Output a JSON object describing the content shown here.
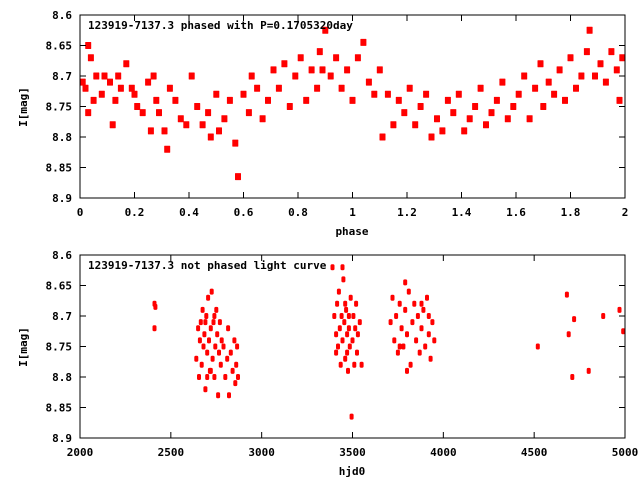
{
  "chart_data": [
    {
      "type": "scatter",
      "title": "123919-7137.3 phased with P=0.1705320day",
      "xlabel": "phase",
      "ylabel": "I[mag]",
      "xlim": [
        0,
        2
      ],
      "ylim": [
        8.9,
        8.6
      ],
      "y_inverted": true,
      "xticks": [
        "0",
        "0.2",
        "0.4",
        "0.6",
        "0.8",
        "1",
        "1.2",
        "1.4",
        "1.6",
        "1.8",
        "2"
      ],
      "yticks": [
        "8.6",
        "8.65",
        "8.7",
        "8.75",
        "8.8",
        "8.85",
        "8.9"
      ],
      "color": "#ff0000",
      "grid": false,
      "points": [
        [
          0.01,
          8.71
        ],
        [
          0.02,
          8.72
        ],
        [
          0.03,
          8.76
        ],
        [
          0.03,
          8.65
        ],
        [
          0.04,
          8.67
        ],
        [
          0.05,
          8.74
        ],
        [
          0.06,
          8.7
        ],
        [
          0.08,
          8.73
        ],
        [
          0.09,
          8.7
        ],
        [
          0.11,
          8.71
        ],
        [
          0.12,
          8.78
        ],
        [
          0.13,
          8.74
        ],
        [
          0.14,
          8.7
        ],
        [
          0.15,
          8.72
        ],
        [
          0.17,
          8.68
        ],
        [
          0.19,
          8.72
        ],
        [
          0.2,
          8.73
        ],
        [
          0.21,
          8.75
        ],
        [
          0.23,
          8.76
        ],
        [
          0.25,
          8.71
        ],
        [
          0.26,
          8.79
        ],
        [
          0.27,
          8.7
        ],
        [
          0.28,
          8.74
        ],
        [
          0.29,
          8.76
        ],
        [
          0.31,
          8.79
        ],
        [
          0.32,
          8.82
        ],
        [
          0.33,
          8.72
        ],
        [
          0.35,
          8.74
        ],
        [
          0.37,
          8.77
        ],
        [
          0.39,
          8.78
        ],
        [
          0.41,
          8.7
        ],
        [
          0.43,
          8.75
        ],
        [
          0.45,
          8.78
        ],
        [
          0.47,
          8.76
        ],
        [
          0.48,
          8.8
        ],
        [
          0.5,
          8.73
        ],
        [
          0.51,
          8.79
        ],
        [
          0.53,
          8.77
        ],
        [
          0.55,
          8.74
        ],
        [
          0.57,
          8.81
        ],
        [
          0.58,
          8.865
        ],
        [
          0.6,
          8.73
        ],
        [
          0.62,
          8.76
        ],
        [
          0.63,
          8.7
        ],
        [
          0.65,
          8.72
        ],
        [
          0.67,
          8.77
        ],
        [
          0.69,
          8.74
        ],
        [
          0.71,
          8.69
        ],
        [
          0.73,
          8.72
        ],
        [
          0.75,
          8.68
        ],
        [
          0.77,
          8.75
        ],
        [
          0.79,
          8.7
        ],
        [
          0.81,
          8.67
        ],
        [
          0.83,
          8.74
        ],
        [
          0.85,
          8.69
        ],
        [
          0.87,
          8.72
        ],
        [
          0.88,
          8.66
        ],
        [
          0.89,
          8.69
        ],
        [
          0.9,
          8.625
        ],
        [
          0.92,
          8.7
        ],
        [
          0.94,
          8.67
        ],
        [
          0.96,
          8.72
        ],
        [
          0.98,
          8.69
        ],
        [
          1.0,
          8.74
        ],
        [
          1.02,
          8.67
        ],
        [
          1.04,
          8.645
        ],
        [
          1.06,
          8.71
        ],
        [
          1.08,
          8.73
        ],
        [
          1.1,
          8.69
        ],
        [
          1.11,
          8.8
        ],
        [
          1.13,
          8.73
        ],
        [
          1.15,
          8.78
        ],
        [
          1.17,
          8.74
        ],
        [
          1.19,
          8.76
        ],
        [
          1.21,
          8.72
        ],
        [
          1.23,
          8.78
        ],
        [
          1.25,
          8.75
        ],
        [
          1.27,
          8.73
        ],
        [
          1.29,
          8.8
        ],
        [
          1.31,
          8.77
        ],
        [
          1.33,
          8.79
        ],
        [
          1.35,
          8.74
        ],
        [
          1.37,
          8.76
        ],
        [
          1.39,
          8.73
        ],
        [
          1.41,
          8.79
        ],
        [
          1.43,
          8.77
        ],
        [
          1.45,
          8.75
        ],
        [
          1.47,
          8.72
        ],
        [
          1.49,
          8.78
        ],
        [
          1.51,
          8.76
        ],
        [
          1.53,
          8.74
        ],
        [
          1.55,
          8.71
        ],
        [
          1.57,
          8.77
        ],
        [
          1.59,
          8.75
        ],
        [
          1.61,
          8.73
        ],
        [
          1.63,
          8.7
        ],
        [
          1.65,
          8.77
        ],
        [
          1.67,
          8.72
        ],
        [
          1.69,
          8.68
        ],
        [
          1.7,
          8.75
        ],
        [
          1.72,
          8.71
        ],
        [
          1.74,
          8.73
        ],
        [
          1.76,
          8.69
        ],
        [
          1.78,
          8.74
        ],
        [
          1.8,
          8.67
        ],
        [
          1.82,
          8.72
        ],
        [
          1.84,
          8.7
        ],
        [
          1.86,
          8.66
        ],
        [
          1.87,
          8.625
        ],
        [
          1.89,
          8.7
        ],
        [
          1.91,
          8.68
        ],
        [
          1.93,
          8.71
        ],
        [
          1.95,
          8.66
        ],
        [
          1.97,
          8.69
        ],
        [
          1.99,
          8.67
        ],
        [
          1.98,
          8.74
        ]
      ]
    },
    {
      "type": "scatter",
      "title": "123919-7137.3 not phased light curve",
      "xlabel": "hjd0",
      "ylabel": "I[mag]",
      "xlim": [
        2000,
        5000
      ],
      "ylim": [
        8.9,
        8.6
      ],
      "y_inverted": true,
      "xticks": [
        "2000",
        "2500",
        "3000",
        "3500",
        "4000",
        "4500",
        "5000"
      ],
      "yticks": [
        "8.6",
        "8.65",
        "8.7",
        "8.75",
        "8.8",
        "8.85",
        "8.9"
      ],
      "color": "#ff0000",
      "grid": false,
      "points": [
        [
          2410,
          8.68
        ],
        [
          2415,
          8.685
        ],
        [
          2410,
          8.72
        ],
        [
          2640,
          8.77
        ],
        [
          2650,
          8.72
        ],
        [
          2655,
          8.8
        ],
        [
          2660,
          8.74
        ],
        [
          2665,
          8.71
        ],
        [
          2670,
          8.78
        ],
        [
          2675,
          8.69
        ],
        [
          2680,
          8.75
        ],
        [
          2685,
          8.73
        ],
        [
          2690,
          8.82
        ],
        [
          2695,
          8.7
        ],
        [
          2700,
          8.76
        ],
        [
          2705,
          8.67
        ],
        [
          2710,
          8.74
        ],
        [
          2715,
          8.79
        ],
        [
          2720,
          8.72
        ],
        [
          2725,
          8.66
        ],
        [
          2730,
          8.77
        ],
        [
          2735,
          8.71
        ],
        [
          2740,
          8.8
        ],
        [
          2745,
          8.75
        ],
        [
          2750,
          8.69
        ],
        [
          2755,
          8.73
        ],
        [
          2760,
          8.83
        ],
        [
          2765,
          8.76
        ],
        [
          2770,
          8.71
        ],
        [
          2775,
          8.78
        ],
        [
          2780,
          8.74
        ],
        [
          2790,
          8.75
        ],
        [
          2800,
          8.8
        ],
        [
          2810,
          8.77
        ],
        [
          2815,
          8.72
        ],
        [
          2820,
          8.83
        ],
        [
          2830,
          8.76
        ],
        [
          2840,
          8.79
        ],
        [
          2850,
          8.74
        ],
        [
          2855,
          8.81
        ],
        [
          2860,
          8.78
        ],
        [
          2865,
          8.75
        ],
        [
          2870,
          8.8
        ],
        [
          2700,
          8.8
        ],
        [
          2720,
          8.79
        ],
        [
          2690,
          8.71
        ],
        [
          2740,
          8.7
        ],
        [
          3390,
          8.62
        ],
        [
          3400,
          8.7
        ],
        [
          3410,
          8.73
        ],
        [
          3415,
          8.68
        ],
        [
          3420,
          8.75
        ],
        [
          3425,
          8.66
        ],
        [
          3430,
          8.72
        ],
        [
          3435,
          8.78
        ],
        [
          3440,
          8.7
        ],
        [
          3445,
          8.74
        ],
        [
          3450,
          8.64
        ],
        [
          3455,
          8.71
        ],
        [
          3460,
          8.77
        ],
        [
          3465,
          8.69
        ],
        [
          3470,
          8.73
        ],
        [
          3475,
          8.79
        ],
        [
          3480,
          8.72
        ],
        [
          3485,
          8.75
        ],
        [
          3490,
          8.67
        ],
        [
          3495,
          8.865
        ],
        [
          3500,
          8.74
        ],
        [
          3505,
          8.7
        ],
        [
          3510,
          8.78
        ],
        [
          3515,
          8.72
        ],
        [
          3520,
          8.68
        ],
        [
          3525,
          8.76
        ],
        [
          3530,
          8.73
        ],
        [
          3540,
          8.71
        ],
        [
          3550,
          8.78
        ],
        [
          3445,
          8.62
        ],
        [
          3460,
          8.68
        ],
        [
          3470,
          8.76
        ],
        [
          3480,
          8.7
        ],
        [
          3410,
          8.76
        ],
        [
          3710,
          8.71
        ],
        [
          3720,
          8.67
        ],
        [
          3730,
          8.74
        ],
        [
          3740,
          8.7
        ],
        [
          3750,
          8.76
        ],
        [
          3760,
          8.68
        ],
        [
          3770,
          8.72
        ],
        [
          3780,
          8.75
        ],
        [
          3790,
          8.69
        ],
        [
          3800,
          8.73
        ],
        [
          3810,
          8.66
        ],
        [
          3820,
          8.78
        ],
        [
          3830,
          8.71
        ],
        [
          3840,
          8.68
        ],
        [
          3850,
          8.74
        ],
        [
          3860,
          8.7
        ],
        [
          3870,
          8.76
        ],
        [
          3880,
          8.72
        ],
        [
          3890,
          8.69
        ],
        [
          3900,
          8.75
        ],
        [
          3910,
          8.67
        ],
        [
          3920,
          8.73
        ],
        [
          3930,
          8.77
        ],
        [
          3940,
          8.71
        ],
        [
          3950,
          8.74
        ],
        [
          3790,
          8.645
        ],
        [
          3800,
          8.79
        ],
        [
          3760,
          8.75
        ],
        [
          3880,
          8.68
        ],
        [
          3920,
          8.7
        ],
        [
          4520,
          8.75
        ],
        [
          4680,
          8.665
        ],
        [
          4690,
          8.73
        ],
        [
          4710,
          8.8
        ],
        [
          4720,
          8.705
        ],
        [
          4800,
          8.79
        ],
        [
          4880,
          8.7
        ],
        [
          4970,
          8.69
        ],
        [
          4990,
          8.725
        ]
      ]
    }
  ]
}
